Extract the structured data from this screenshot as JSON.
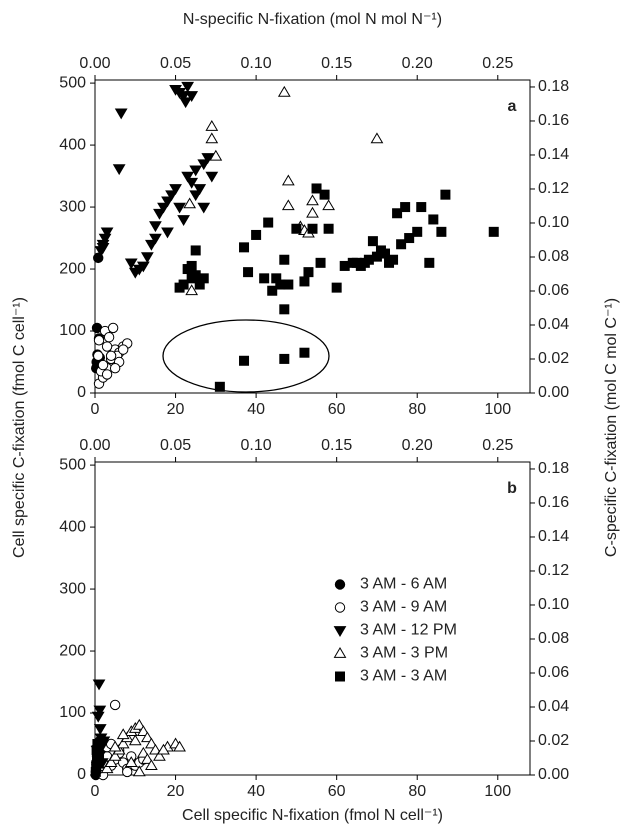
{
  "chart_data": [
    {
      "type": "scatter",
      "panel_label": "a",
      "x2label": "N-specific N-fixation (mol N mol N⁻¹)",
      "ylabel": "Cell specific C-fixation (fmol C cell⁻¹)",
      "y2label": "C-specific C-fixation (mol C mol C⁻¹)",
      "xlim": [
        0,
        108
      ],
      "xticks": [
        0,
        20,
        40,
        60,
        80,
        100
      ],
      "x2lim": [
        0,
        0.27
      ],
      "x2ticks": [
        {
          "value": 0,
          "label": "0.00"
        },
        {
          "value": 0.05,
          "label": "0.05"
        },
        {
          "value": 0.1,
          "label": "0.10"
        },
        {
          "value": 0.15,
          "label": "0.15"
        },
        {
          "value": 0.2,
          "label": "0.20"
        },
        {
          "value": 0.25,
          "label": "0.25"
        }
      ],
      "ylim": [
        0,
        505
      ],
      "yticks": [
        0,
        100,
        200,
        300,
        400,
        500
      ],
      "y2lim": [
        0,
        0.1841
      ],
      "y2ticks": [
        {
          "value": 0,
          "label": "0.00"
        },
        {
          "value": 0.02,
          "label": "0.02"
        },
        {
          "value": 0.04,
          "label": "0.04"
        },
        {
          "value": 0.06,
          "label": "0.06"
        },
        {
          "value": 0.08,
          "label": "0.08"
        },
        {
          "value": 0.1,
          "label": "0.10"
        },
        {
          "value": 0.12,
          "label": "0.12"
        },
        {
          "value": 0.14,
          "label": "0.14"
        },
        {
          "value": 0.16,
          "label": "0.16"
        },
        {
          "value": 0.18,
          "label": "0.18"
        }
      ],
      "series": [
        {
          "marker": "circle",
          "color": "#000000",
          "x": [
            0.8,
            0.5,
            1.0,
            0.6,
            1.2,
            0.4,
            0.9,
            0.3
          ],
          "values": [
            218,
            105,
            88,
            62,
            57,
            50,
            45,
            40
          ]
        },
        {
          "marker": "circle-open",
          "color": "#000000",
          "x": [
            1,
            2,
            3,
            4,
            5,
            6,
            7,
            8,
            2.5,
            3.5,
            4.5,
            5.5,
            1.5,
            2,
            3,
            4,
            6,
            7,
            1,
            0.8,
            3,
            5
          ],
          "values": [
            15,
            25,
            40,
            55,
            70,
            65,
            75,
            80,
            100,
            90,
            105,
            60,
            35,
            45,
            75,
            60,
            50,
            70,
            85,
            60,
            30,
            40
          ]
        },
        {
          "marker": "triangle-down",
          "color": "#000000",
          "x": [
            1.5,
            2,
            2.5,
            3,
            2,
            6.5,
            6,
            20,
            21,
            22,
            23,
            22.5,
            24,
            11,
            12,
            13,
            14,
            15,
            16,
            17,
            18,
            19,
            20,
            21,
            22,
            23,
            24,
            25,
            26,
            27,
            28,
            10,
            9,
            15,
            18,
            25,
            27,
            29
          ],
          "values": [
            230,
            240,
            250,
            260,
            235,
            452,
            362,
            490,
            485,
            480,
            495,
            470,
            480,
            200,
            205,
            220,
            240,
            270,
            290,
            300,
            310,
            320,
            330,
            300,
            280,
            350,
            340,
            360,
            330,
            370,
            380,
            195,
            210,
            250,
            260,
            320,
            300,
            350
          ]
        },
        {
          "marker": "triangle-up-open",
          "color": "#000000",
          "x": [
            23.5,
            29,
            29,
            30,
            24,
            47,
            48,
            48,
            51,
            52,
            53,
            54,
            54,
            58,
            70
          ],
          "values": [
            305,
            430,
            410,
            382,
            165,
            485,
            302,
            342,
            268,
            262,
            258,
            310,
            290,
            302,
            410
          ]
        },
        {
          "marker": "square",
          "color": "#000000",
          "x": [
            21,
            22,
            23,
            24,
            25,
            26,
            27,
            25,
            24,
            37,
            38,
            40,
            42,
            43,
            44,
            45,
            46,
            47,
            47,
            48,
            50,
            52,
            53,
            54,
            55,
            56,
            57,
            58,
            60,
            62,
            64,
            65,
            66,
            67,
            68,
            69,
            70,
            71,
            72,
            73,
            74,
            75,
            76,
            77,
            78,
            80,
            81,
            83,
            84,
            86,
            87,
            99,
            31,
            37,
            47,
            52
          ],
          "values": [
            170,
            175,
            200,
            185,
            190,
            175,
            185,
            230,
            205,
            235,
            195,
            255,
            185,
            275,
            165,
            185,
            175,
            135,
            215,
            175,
            265,
            180,
            195,
            265,
            330,
            210,
            320,
            265,
            170,
            205,
            210,
            210,
            205,
            210,
            215,
            245,
            220,
            230,
            225,
            210,
            215,
            290,
            240,
            300,
            250,
            260,
            300,
            210,
            280,
            260,
            320,
            260,
            10,
            52,
            55,
            65
          ]
        }
      ]
    },
    {
      "type": "scatter",
      "panel_label": "b",
      "xlabel": "Cell specific N-fixation (fmol N cell⁻¹)",
      "xlim": [
        0,
        108
      ],
      "xticks": [
        0,
        20,
        40,
        60,
        80,
        100
      ],
      "x2lim": [
        0,
        0.27
      ],
      "x2ticks": [
        {
          "value": 0,
          "label": "0.00"
        },
        {
          "value": 0.05,
          "label": "0.05"
        },
        {
          "value": 0.1,
          "label": "0.10"
        },
        {
          "value": 0.15,
          "label": "0.15"
        },
        {
          "value": 0.2,
          "label": "0.20"
        },
        {
          "value": 0.25,
          "label": "0.25"
        }
      ],
      "ylim": [
        0,
        505
      ],
      "yticks": [
        0,
        100,
        200,
        300,
        400,
        500
      ],
      "y2lim": [
        0,
        0.1841
      ],
      "y2ticks": [
        {
          "value": 0,
          "label": "0.00"
        },
        {
          "value": 0.02,
          "label": "0.02"
        },
        {
          "value": 0.04,
          "label": "0.04"
        },
        {
          "value": 0.06,
          "label": "0.06"
        },
        {
          "value": 0.08,
          "label": "0.08"
        },
        {
          "value": 0.1,
          "label": "0.10"
        },
        {
          "value": 0.12,
          "label": "0.12"
        },
        {
          "value": 0.14,
          "label": "0.14"
        },
        {
          "value": 0.16,
          "label": "0.16"
        },
        {
          "value": 0.18,
          "label": "0.18"
        }
      ],
      "legend": "right",
      "series": [
        {
          "name": "3 AM - 6 AM",
          "marker": "circle",
          "color": "#000000",
          "x": [
            0.2,
            0.4,
            0.6,
            0.8,
            1,
            1.2,
            0.5,
            0.3,
            0.9,
            1.5,
            0.7,
            0.2
          ],
          "values": [
            5,
            15,
            25,
            35,
            45,
            55,
            30,
            20,
            50,
            40,
            10,
            0
          ]
        },
        {
          "name": "3 AM - 9 AM",
          "marker": "circle-open",
          "color": "#000000",
          "x": [
            1,
            2,
            3,
            4,
            5,
            6,
            7,
            8,
            9,
            10,
            11,
            12,
            5,
            3,
            6,
            8,
            2,
            4
          ],
          "values": [
            10,
            20,
            30,
            15,
            25,
            40,
            20,
            10,
            30,
            15,
            20,
            25,
            113,
            45,
            35,
            5,
            0,
            50
          ]
        },
        {
          "name": "3 AM - 12 PM",
          "marker": "triangle-down",
          "color": "#000000",
          "x": [
            1,
            1.2,
            0.8,
            1.5,
            2,
            0.5,
            1,
            1.8,
            0.6,
            2.2,
            1.3
          ],
          "values": [
            147,
            105,
            95,
            60,
            50,
            40,
            30,
            20,
            10,
            55,
            75
          ]
        },
        {
          "name": "3 AM - 3 PM",
          "marker": "triangle-up-open",
          "color": "#000000",
          "x": [
            3,
            4,
            5,
            6,
            7,
            8,
            9,
            10,
            11,
            12,
            13,
            14,
            15,
            16,
            18,
            20,
            21,
            9,
            11,
            12,
            7,
            10,
            13,
            5,
            14,
            17
          ],
          "values": [
            10,
            20,
            30,
            40,
            50,
            60,
            70,
            75,
            80,
            70,
            60,
            50,
            40,
            30,
            45,
            50,
            45,
            20,
            5,
            35,
            65,
            55,
            25,
            45,
            15,
            40
          ]
        },
        {
          "name": "3 AM - 3 AM",
          "marker": "square",
          "color": "#000000",
          "x": [
            0.3,
            0.5,
            0.7,
            0.4,
            0.6,
            0.8,
            1,
            0.2
          ],
          "values": [
            10,
            20,
            30,
            40,
            50,
            35,
            25,
            5
          ]
        }
      ]
    }
  ]
}
